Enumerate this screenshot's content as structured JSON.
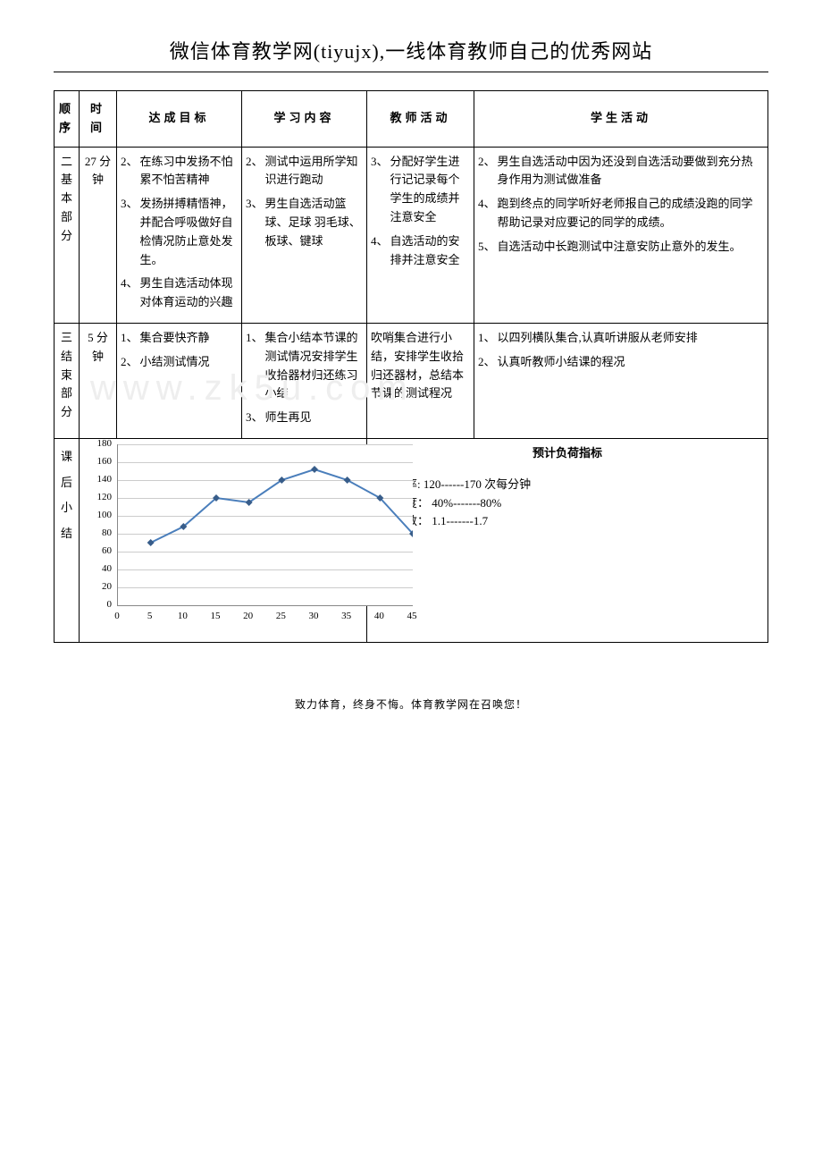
{
  "header": {
    "title": "微信体育教学网(tiyujx),一线体育教师自己的优秀网站"
  },
  "tableHead": {
    "seq": "顺序",
    "time": "时间",
    "goal": "达成目标",
    "content": "学习内容",
    "teacher": "教师活动",
    "student": "学生活动"
  },
  "row1": {
    "seqLines": [
      "二",
      "基",
      "本",
      "部",
      "分"
    ],
    "time": "27 分钟",
    "goal": [
      {
        "n": "2、",
        "t": "在练习中发扬不怕累不怕苦精神"
      },
      {
        "n": "3、",
        "t": "发扬拼搏精悟神，并配合呼吸做好自检情况防止意处发生。"
      },
      {
        "n": "4、",
        "t": "男生自选活动体现对体育运动的兴趣"
      }
    ],
    "content": [
      {
        "n": "2、",
        "t": "测试中运用所学知识进行跑动"
      },
      {
        "n": "3、",
        "t": "男生自选活动篮球、足球 羽毛球、板球、键球"
      }
    ],
    "teacher": [
      {
        "n": "3、",
        "t": "分配好学生进行记记录每个学生的成绩并注意安全"
      },
      {
        "n": "4、",
        "t": "自选活动的安排并注意安全"
      }
    ],
    "student": [
      {
        "n": "2、",
        "t": "男生自选活动中因为还没到自选活动要做到充分热身作用为测试做准备"
      },
      {
        "n": "4、",
        "t": "跑到终点的同学听好老师报自己的成绩没跑的同学帮助记录对应要记的同学的成绩。"
      },
      {
        "n": "5、",
        "t": "自选活动中长跑测试中注意安防止意外的发生。"
      }
    ]
  },
  "row2": {
    "seqLines": [
      "三",
      "结",
      "束",
      "部",
      "分"
    ],
    "time": "5 分钟",
    "goal": [
      {
        "n": "1、",
        "t": "集合要快齐静"
      },
      {
        "n": "2、",
        "t": "小结测试情况"
      }
    ],
    "content": [
      {
        "n": "1、",
        "t": "集合小结本节课的测试情况安排学生收拾器材归还练习小结"
      },
      {
        "n": "3、",
        "t": "师生再见"
      }
    ],
    "teacher": "吹哨集合进行小结，安排学生收拾归还器材，总结本节课的测试程况",
    "student": [
      {
        "n": "1、",
        "t": "以四列横队集合,认真听讲服从老师安排"
      },
      {
        "n": "2、",
        "t": "认真听教师小结课的程况"
      }
    ]
  },
  "row3": {
    "label": [
      "课",
      "后",
      "小",
      "结"
    ],
    "chart": {
      "type": "line",
      "xTicks": [
        0,
        5,
        10,
        15,
        20,
        25,
        30,
        35,
        40,
        45
      ],
      "yTicks": [
        0,
        20,
        40,
        60,
        80,
        100,
        120,
        140,
        160,
        180
      ],
      "xlim": [
        0,
        45
      ],
      "ylim": [
        0,
        180
      ],
      "points": [
        {
          "x": 5,
          "y": 70
        },
        {
          "x": 10,
          "y": 88
        },
        {
          "x": 15,
          "y": 120
        },
        {
          "x": 20,
          "y": 115
        },
        {
          "x": 25,
          "y": 140
        },
        {
          "x": 30,
          "y": 152
        },
        {
          "x": 35,
          "y": 140
        },
        {
          "x": 40,
          "y": 120
        },
        {
          "x": 45,
          "y": 80
        }
      ],
      "lineColor": "#4a7ebb",
      "markerColor": "#385d8a",
      "gridColor": "#cccccc",
      "axisColor": "#888888",
      "background": "#ffffff",
      "lineWidth": 2,
      "markerSize": 4
    },
    "load": {
      "title": "预计负荷指标",
      "heartLabel": "平均心率:",
      "heartValue": "120------170 次每分钟",
      "densityLabel": "练习密度：",
      "densityValue": "40%-------80%",
      "intensityLabel": "强度指数：",
      "intensityValue": "1.1-------1.7"
    }
  },
  "footer": "致力体育，终身不悔。体育教学网在召唤您！",
  "watermark": "www.zk5u.com"
}
